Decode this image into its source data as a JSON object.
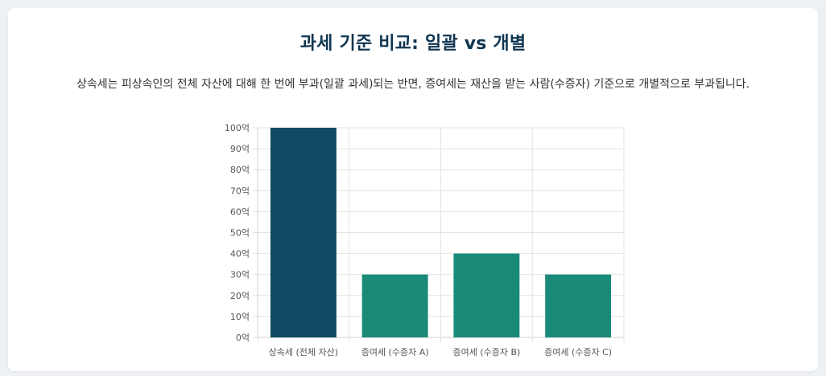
{
  "title": "과세 기준 비교: 일괄 vs 개별",
  "description": "상속세는 피상속인의 전체 자산에 대해 한 번에 부과(일괄 과세)되는 반면, 증여세는 재산을 받는 사람(수증자) 기준으로 개별적으로 부과됩니다.",
  "colors": {
    "inheritance": "#0e4a61",
    "gift": "#1a8a78",
    "title": "#0f3550"
  },
  "chart_data": {
    "type": "bar",
    "categories": [
      "상속세 (전체 자산)",
      "증여세 (수증자 A)",
      "증여세 (수증자 B)",
      "증여세 (수증자 C)"
    ],
    "values": [
      100,
      30,
      40,
      30
    ],
    "bar_colors": [
      "#0e4a61",
      "#1a8a78",
      "#1a8a78",
      "#1a8a78"
    ],
    "ylim": [
      0,
      100
    ],
    "yticks": [
      0,
      10,
      20,
      30,
      40,
      50,
      60,
      70,
      80,
      90,
      100
    ],
    "ytick_suffix": "억",
    "grid": true,
    "legend": "none",
    "title": "",
    "xlabel": "",
    "ylabel": ""
  }
}
